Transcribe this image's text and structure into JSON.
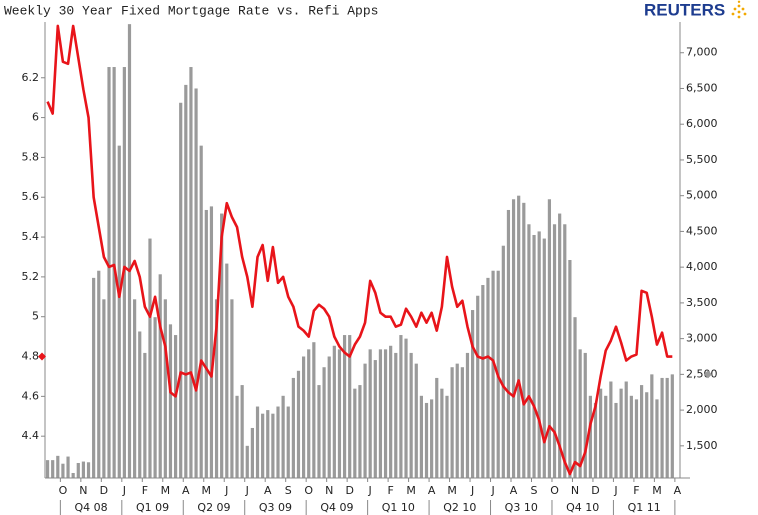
{
  "chart_data": {
    "type": "combo",
    "title": "Weekly 30 Year Fixed Mortgage Rate vs. Refi Apps",
    "logo": "REUTERS",
    "categories": [
      null,
      null,
      null,
      "O",
      null,
      null,
      null,
      "N",
      null,
      null,
      null,
      "D",
      null,
      null,
      null,
      "J",
      null,
      null,
      null,
      "F",
      null,
      null,
      null,
      "M",
      null,
      null,
      null,
      "A",
      null,
      null,
      null,
      "M",
      null,
      null,
      null,
      "J",
      null,
      null,
      null,
      "J",
      null,
      null,
      null,
      "A",
      null,
      null,
      null,
      "S",
      null,
      null,
      null,
      "O",
      null,
      null,
      null,
      "N",
      null,
      null,
      null,
      "D",
      null,
      null,
      null,
      "J",
      null,
      null,
      null,
      "F",
      null,
      null,
      null,
      "M",
      null,
      null,
      null,
      "A",
      null,
      null,
      null,
      "M",
      null,
      null,
      null,
      "J",
      null,
      null,
      null,
      "J",
      null,
      null,
      null,
      "A",
      null,
      null,
      null,
      "S",
      null,
      null,
      null,
      "O",
      null,
      null,
      null,
      "N",
      null,
      null,
      null,
      "D",
      null,
      null,
      null,
      "J",
      null,
      null,
      null,
      "F",
      null,
      null,
      null,
      "M",
      null,
      null,
      null,
      "A"
    ],
    "quarters": [
      "Q4 08",
      "Q1 09",
      "Q2 09",
      "Q3 09",
      "Q4 09",
      "Q1 10",
      "Q2 10",
      "Q3 10",
      "Q4 10",
      "Q1 11"
    ],
    "series": [
      {
        "type": "bar",
        "axis": "y2",
        "color": "#9a9a9a",
        "values": [
          1300,
          1300,
          1360,
          1250,
          1350,
          1120,
          1260,
          1280,
          1270,
          3850,
          3950,
          3550,
          6800,
          6800,
          5700,
          6800,
          7400,
          3550,
          3100,
          2800,
          4400,
          3300,
          3900,
          3550,
          3200,
          3050,
          6300,
          6550,
          6800,
          6500,
          5700,
          4800,
          4850,
          3550,
          4750,
          4050,
          3550,
          2200,
          2350,
          1500,
          1750,
          2050,
          1950,
          2000,
          1950,
          2050,
          2200,
          2050,
          2450,
          2550,
          2750,
          2850,
          2950,
          2350,
          2600,
          2750,
          2900,
          2850,
          3050,
          3050,
          2300,
          2350,
          2650,
          2850,
          2700,
          2850,
          2850,
          2900,
          2800,
          3050,
          3000,
          2800,
          2650,
          2200,
          2100,
          2150,
          2450,
          2300,
          2200,
          2600,
          2650,
          2600,
          2800,
          3400,
          3600,
          3750,
          3850,
          3950,
          3950,
          4300,
          4800,
          4950,
          5000,
          4900,
          4600,
          4450,
          4500,
          4400,
          4950,
          4600,
          4750,
          4600,
          4100,
          3300,
          2850,
          2800,
          2200,
          2100,
          2300,
          2200,
          2400,
          2100,
          2300,
          2400,
          2200,
          2150,
          2350,
          2250,
          2500,
          2150,
          2450,
          2450,
          2500,
          null
        ]
      },
      {
        "type": "line",
        "axis": "y",
        "color": "#e8141a",
        "values": [
          6.08,
          6.02,
          6.46,
          6.28,
          6.27,
          6.46,
          6.3,
          6.14,
          6.0,
          5.6,
          5.45,
          5.3,
          5.25,
          5.26,
          5.1,
          5.25,
          5.23,
          5.28,
          5.2,
          5.05,
          5.0,
          5.1,
          4.95,
          4.85,
          4.62,
          4.6,
          4.72,
          4.71,
          4.72,
          4.63,
          4.78,
          4.74,
          4.7,
          4.95,
          5.4,
          5.57,
          5.5,
          5.45,
          5.3,
          5.2,
          5.05,
          5.3,
          5.36,
          5.18,
          5.35,
          5.17,
          5.2,
          5.1,
          5.05,
          4.95,
          4.93,
          4.9,
          5.03,
          5.06,
          5.04,
          5.0,
          4.9,
          4.85,
          4.82,
          4.8,
          4.86,
          4.9,
          4.97,
          5.18,
          5.12,
          5.02,
          5.0,
          5.0,
          4.95,
          4.96,
          5.04,
          5.0,
          4.95,
          5.02,
          4.97,
          5.02,
          4.93,
          5.05,
          5.3,
          5.15,
          5.05,
          5.08,
          4.95,
          4.85,
          4.8,
          4.79,
          4.8,
          4.78,
          4.7,
          4.65,
          4.62,
          4.6,
          4.68,
          4.56,
          4.6,
          4.55,
          4.48,
          4.37,
          4.45,
          4.42,
          4.35,
          4.27,
          4.21,
          4.27,
          4.25,
          4.32,
          4.46,
          4.55,
          4.7,
          4.83,
          4.88,
          4.95,
          4.87,
          4.78,
          4.8,
          4.81,
          5.13,
          5.12,
          5.0,
          4.86,
          4.92,
          4.8,
          4.8,
          null
        ]
      }
    ],
    "ylim": [
      4.19,
      6.48
    ],
    "yticks": [
      4.4,
      4.6,
      4.8,
      5,
      5.2,
      5.4,
      5.6,
      5.8,
      6,
      6.2
    ],
    "y2lim": [
      1050,
      7430
    ],
    "y2ticks": [
      {
        "value": 1500,
        "label": "1,500"
      },
      {
        "value": 2000,
        "label": "2,000"
      },
      {
        "value": 2500,
        "label": "2,500"
      },
      {
        "value": 3000,
        "label": "3,000"
      },
      {
        "value": 3500,
        "label": "3,500"
      },
      {
        "value": 4000,
        "label": "4,000"
      },
      {
        "value": 4500,
        "label": "4,500"
      },
      {
        "value": 5000,
        "label": "5,000"
      },
      {
        "value": 5500,
        "label": "5,500"
      },
      {
        "value": 6000,
        "label": "6,000"
      },
      {
        "value": 6500,
        "label": "6,500"
      },
      {
        "value": 7000,
        "label": "7,000"
      }
    ],
    "grid": false
  }
}
